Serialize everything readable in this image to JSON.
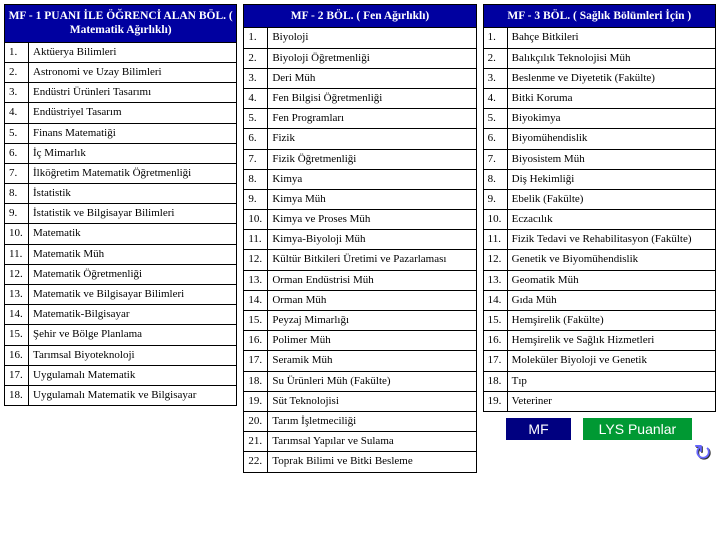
{
  "columns": [
    {
      "header": "MF - 1 PUANI İLE ÖĞRENCİ ALAN BÖL.\n( Matematik Ağırlıklı)",
      "rows": [
        "Aktüerya Bilimleri",
        "Astronomi ve Uzay Bilimleri",
        "Endüstri Ürünleri Tasarımı",
        "Endüstriyel Tasarım",
        "Finans Matematiği",
        "İç Mimarlık",
        "İlköğretim Matematik Öğretmenliği",
        "İstatistik",
        "İstatistik ve Bilgisayar Bilimleri",
        "Matematik",
        "Matematik Müh",
        "Matematik Öğretmenliği",
        "Matematik ve Bilgisayar Bilimleri",
        "Matematik-Bilgisayar",
        "Şehir ve Bölge Planlama",
        "Tarımsal Biyoteknoloji",
        "Uygulamalı Matematik",
        "Uygulamalı Matematik ve Bilgisayar"
      ]
    },
    {
      "header": "MF - 2 BÖL.\n( Fen Ağırlıklı)",
      "rows": [
        "Biyoloji",
        "Biyoloji Öğretmenliği",
        "Deri Müh",
        "Fen Bilgisi Öğretmenliği",
        "Fen Programları",
        "Fizik",
        "Fizik Öğretmenliği",
        "Kimya",
        "Kimya Müh",
        "Kimya ve Proses Müh",
        "Kimya-Biyoloji Müh",
        "Kültür Bitkileri Üretimi ve Pazarlaması",
        "Orman Endüstrisi Müh",
        "Orman Müh",
        "Peyzaj Mimarlığı",
        "Polimer Müh",
        "Seramik Müh",
        "Su Ürünleri Müh (Fakülte)",
        "Süt Teknolojisi",
        "Tarım İşletmeciliği",
        "Tarımsal Yapılar ve Sulama",
        "Toprak Bilimi ve Bitki Besleme"
      ]
    },
    {
      "header": "MF - 3 BÖL.\n( Sağlık Bölümleri İçin )",
      "rows": [
        "Bahçe Bitkileri",
        "Balıkçılık Teknolojisi Müh",
        "Beslenme ve Diyetetik (Fakülte)",
        "Bitki Koruma",
        "Biyokimya",
        "Biyomühendislik",
        "Biyosistem Müh",
        "Diş Hekimliği",
        "Ebelik (Fakülte)",
        "Eczacılık",
        "Fizik Tedavi ve Rehabilitasyon (Fakülte)",
        "Genetik ve Biyomühendislik",
        "Geomatik Müh",
        "Gıda Müh",
        "Hemşirelik (Fakülte)",
        "Hemşirelik ve Sağlık Hizmetleri",
        "Moleküler Biyoloji ve Genetik",
        "Tıp",
        "Veteriner"
      ]
    }
  ],
  "buttons": {
    "mf": "MF",
    "lys": "LYS Puanlar"
  },
  "colors": {
    "header_bg": "#0000a0",
    "header_fg": "#ffffff",
    "border": "#000000",
    "btn_blue": "#000080",
    "btn_green": "#009933"
  }
}
